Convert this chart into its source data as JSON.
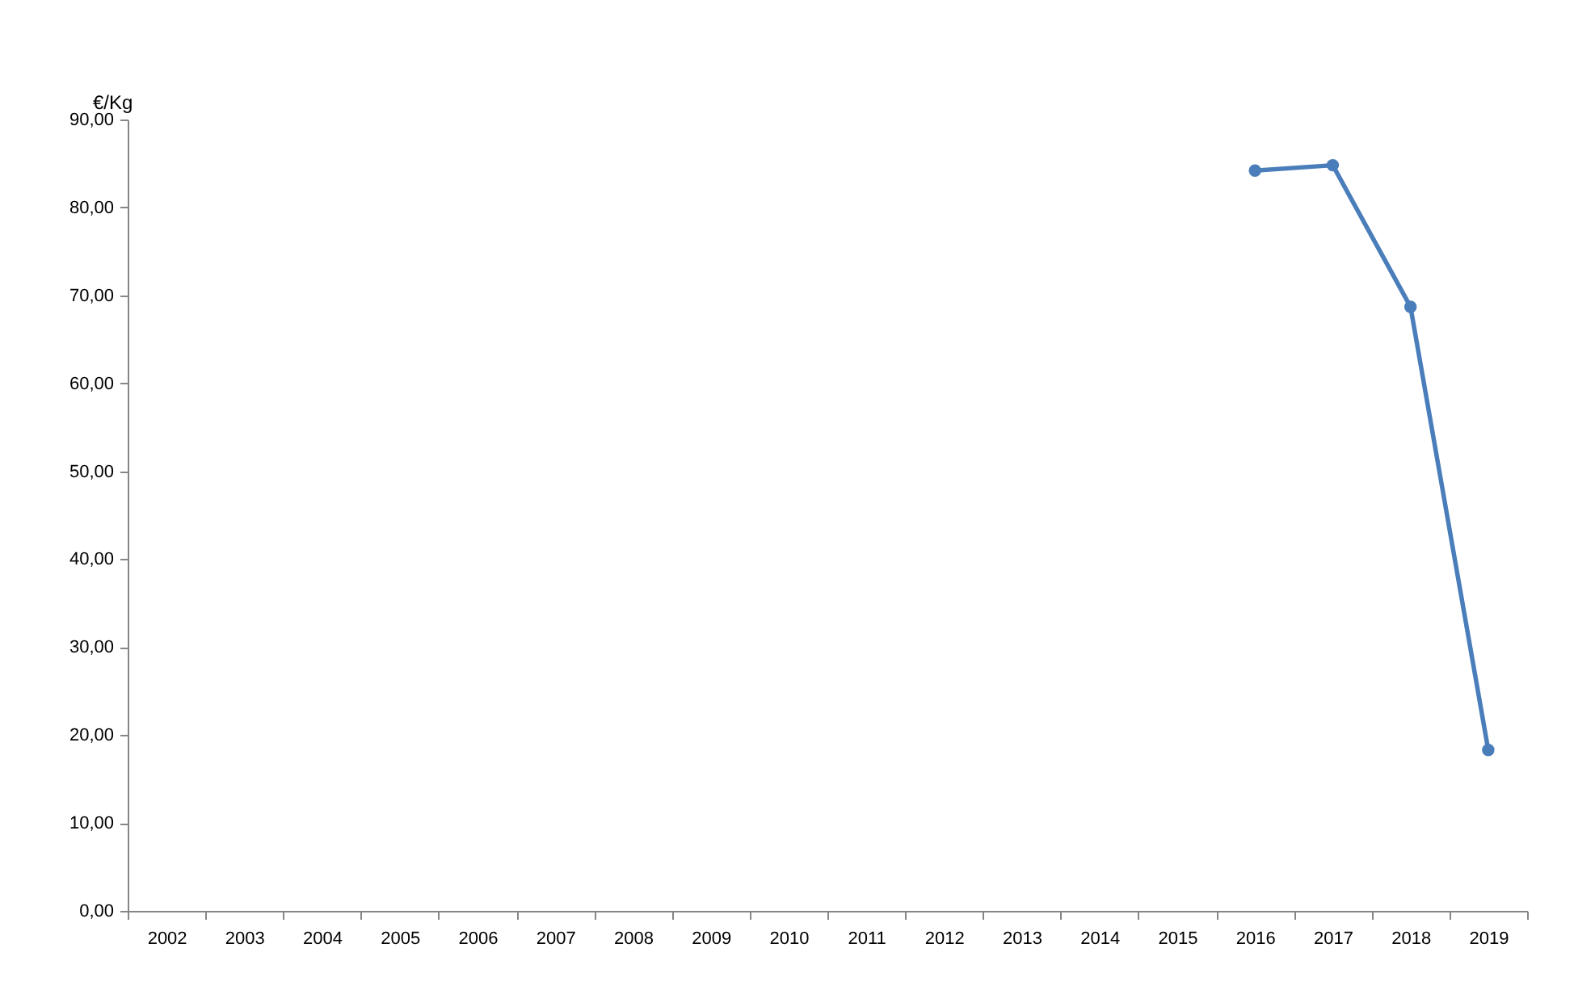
{
  "chart_data": {
    "type": "line",
    "categories": [
      "2002",
      "2003",
      "2004",
      "2005",
      "2006",
      "2007",
      "2008",
      "2009",
      "2010",
      "2011",
      "2012",
      "2013",
      "2014",
      "2015",
      "2016",
      "2017",
      "2018",
      "2019"
    ],
    "series": [
      {
        "color": "#4a7ebb",
        "values": [
          null,
          null,
          null,
          null,
          null,
          null,
          null,
          null,
          null,
          null,
          null,
          null,
          null,
          null,
          84.2,
          84.8,
          68.7,
          18.3
        ]
      }
    ],
    "ylabel": "€/Kg",
    "ylim": [
      0,
      90
    ],
    "yticks": [
      {
        "value": 0,
        "label": "0,00"
      },
      {
        "value": 10,
        "label": "10,00"
      },
      {
        "value": 20,
        "label": "20,00"
      },
      {
        "value": 30,
        "label": "30,00"
      },
      {
        "value": 40,
        "label": "40,00"
      },
      {
        "value": 50,
        "label": "50,00"
      },
      {
        "value": 60,
        "label": "60,00"
      },
      {
        "value": 70,
        "label": "70,00"
      },
      {
        "value": 80,
        "label": "80,00"
      },
      {
        "value": 90,
        "label": "90,00"
      }
    ],
    "marker": "circle",
    "line_style": "solid"
  }
}
